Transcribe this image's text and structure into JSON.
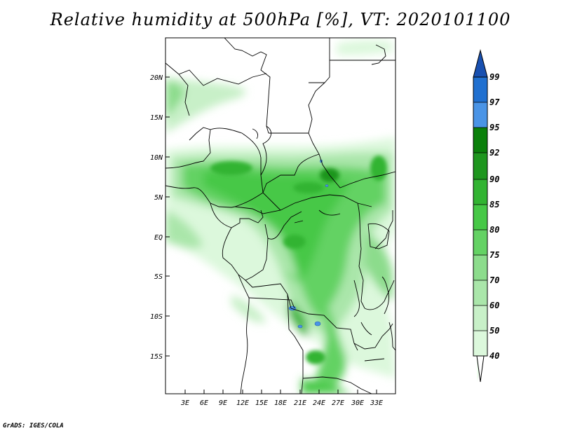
{
  "title": "Relative humidity at 500hPa [%], VT: 2020101100",
  "credit": "GrADS: IGES/COLA",
  "map": {
    "lon_range": [
      0,
      36
    ],
    "lat_range": [
      -20,
      24.5
    ],
    "lat_ticks": [
      "20N",
      "15N",
      "10N",
      "5N",
      "EQ",
      "5S",
      "10S",
      "15S"
    ],
    "lon_ticks": [
      "3E",
      "6E",
      "9E",
      "12E",
      "15E",
      "18E",
      "21E",
      "24E",
      "27E",
      "30E",
      "33E"
    ]
  },
  "colorbar": {
    "labels": [
      "40",
      "50",
      "60",
      "70",
      "75",
      "80",
      "85",
      "90",
      "92",
      "95",
      "97",
      "99"
    ],
    "colors": [
      "#f0fff0",
      "#dcf8dc",
      "#c8f0c8",
      "#aae6aa",
      "#8cdc8c",
      "#64d264",
      "#46c846",
      "#32b432",
      "#1e961e",
      "#0a800a",
      "#4a94e6",
      "#2070d0",
      "#1850b0"
    ]
  }
}
